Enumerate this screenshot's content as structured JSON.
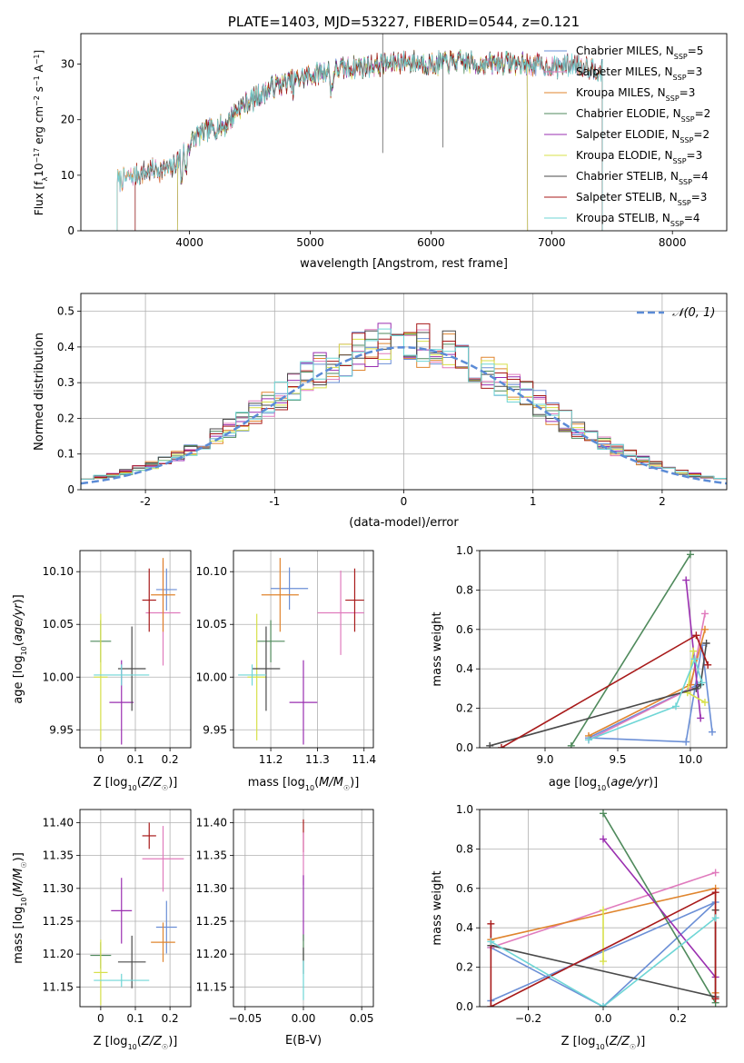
{
  "chart_data": [
    {
      "id": "spectrum",
      "type": "line",
      "title": "PLATE=1403, MJD=53227, FIBERID=0544, z=0.121",
      "xlabel": "wavelength [Angstrom, rest frame]",
      "ylabel": "Flux [f_λ 10^-17 erg cm^-2 s^-1 A^-1]",
      "xlim": [
        3100,
        8450
      ],
      "ylim": [
        0,
        35.5
      ],
      "xticks": [
        4000,
        5000,
        6000,
        7000,
        8000
      ],
      "yticks": [
        0,
        10,
        20,
        30
      ],
      "grid": false,
      "legend_position": "top-right",
      "spectrum_profile": {
        "x": [
          3400,
          3550,
          3700,
          3850,
          3950,
          4050,
          4150,
          4300,
          4400,
          4550,
          4700,
          4860,
          5000,
          5200,
          5400,
          5600,
          5800,
          6000,
          6200,
          6400,
          6600,
          6800,
          7000,
          7200,
          7400
        ],
        "y": [
          9,
          10,
          11,
          11,
          14,
          17,
          18,
          19,
          22,
          24,
          26,
          27,
          28,
          29,
          29.5,
          30,
          30.5,
          30,
          30.5,
          30,
          30.3,
          30,
          29.5,
          30,
          29
        ]
      },
      "series": [
        {
          "name": "Chabrier MILES, N_SSP=5",
          "color": "#6b8fd6",
          "x_start": 3400,
          "x_end": 7420
        },
        {
          "name": "Salpeter MILES, N_SSP=3",
          "color": "#e07bbd",
          "x_start": 3400,
          "x_end": 7420
        },
        {
          "name": "Kroupa MILES, N_SSP=3",
          "color": "#e0852e",
          "x_start": 3400,
          "x_end": 7420
        },
        {
          "name": "Chabrier ELODIE, N_SSP=2",
          "color": "#4f8a5c",
          "x_start": 3900,
          "x_end": 6800
        },
        {
          "name": "Salpeter ELODIE, N_SSP=2",
          "color": "#9a2fb0",
          "x_start": 3900,
          "x_end": 6800
        },
        {
          "name": "Kroupa ELODIE, N_SSP=3",
          "color": "#d7e04a",
          "x_start": 3900,
          "x_end": 6800
        },
        {
          "name": "Chabrier STELIB, N_SSP=4",
          "color": "#4a4a4a",
          "x_start": 3550,
          "x_end": 7420
        },
        {
          "name": "Salpeter STELIB, N_SSP=3",
          "color": "#a81a1a",
          "x_start": 3550,
          "x_end": 7420
        },
        {
          "name": "Kroupa STELIB, N_SSP=4",
          "color": "#6fd6d6",
          "x_start": 3400,
          "x_end": 7420
        }
      ]
    },
    {
      "id": "residuals",
      "type": "step",
      "xlabel": "(data-model)/error",
      "ylabel": "Normed distribution",
      "xlim": [
        -2.5,
        2.5
      ],
      "ylim": [
        0,
        0.55
      ],
      "xticks": [
        -2,
        -1,
        0,
        1,
        2
      ],
      "yticks": [
        0.0,
        0.1,
        0.2,
        0.3,
        0.4,
        0.5
      ],
      "grid": true,
      "legend": "𝒩(0, 1)",
      "legend_position": "top-right",
      "gaussian_color": "#5b8bd6",
      "bin_width": 0.1
    },
    {
      "id": "age-vs-Z",
      "type": "errorbar",
      "xlabel": "Z [log₁₀(Z/Z☉)]",
      "ylabel": "age  [log₁₀(age/yr)]",
      "xlim": [
        -0.06,
        0.26
      ],
      "ylim": [
        9.933,
        10.12
      ],
      "xticks": [
        0.0,
        0.1,
        0.2
      ],
      "yticks": [
        9.95,
        10.0,
        10.05,
        10.1
      ],
      "points": [
        {
          "color": "#6b8fd6",
          "x": 0.19,
          "y": 10.083,
          "xerr": 0.03,
          "yerr": 0.02
        },
        {
          "color": "#e07bbd",
          "x": 0.18,
          "y": 10.061,
          "xerr": 0.05,
          "yerr": 0.05
        },
        {
          "color": "#e0852e",
          "x": 0.18,
          "y": 10.078,
          "xerr": 0.035,
          "yerr": 0.035
        },
        {
          "color": "#4f8a5c",
          "x": 0.0,
          "y": 10.034,
          "xerr": 0.03,
          "yerr": 0.02
        },
        {
          "color": "#9a2fb0",
          "x": 0.06,
          "y": 9.976,
          "xerr": 0.035,
          "yerr": 0.04
        },
        {
          "color": "#d7e04a",
          "x": 0.0,
          "y": 10.0,
          "xerr": 0.02,
          "yerr": 0.06
        },
        {
          "color": "#4a4a4a",
          "x": 0.09,
          "y": 10.008,
          "xerr": 0.04,
          "yerr": 0.04
        },
        {
          "color": "#a81a1a",
          "x": 0.14,
          "y": 10.073,
          "xerr": 0.02,
          "yerr": 0.03
        },
        {
          "color": "#6fd6d6",
          "x": 0.06,
          "y": 10.002,
          "xerr": 0.08,
          "yerr": 0.01
        }
      ]
    },
    {
      "id": "age-vs-mass",
      "type": "errorbar",
      "xlabel": "mass [log₁₀(M/M☉)]",
      "ylabel": "",
      "xlim": [
        11.12,
        11.42
      ],
      "ylim": [
        9.933,
        10.12
      ],
      "xticks": [
        11.2,
        11.3,
        11.4
      ],
      "yticks": [
        9.95,
        10.0,
        10.05,
        10.1
      ],
      "points": [
        {
          "color": "#6b8fd6",
          "x": 11.24,
          "y": 10.084,
          "xerr": 0.04,
          "yerr": 0.02
        },
        {
          "color": "#e07bbd",
          "x": 11.35,
          "y": 10.061,
          "xerr": 0.05,
          "yerr": 0.04
        },
        {
          "color": "#e0852e",
          "x": 11.22,
          "y": 10.078,
          "xerr": 0.04,
          "yerr": 0.035
        },
        {
          "color": "#4f8a5c",
          "x": 11.2,
          "y": 10.034,
          "xerr": 0.03,
          "yerr": 0.02
        },
        {
          "color": "#9a2fb0",
          "x": 11.27,
          "y": 9.976,
          "xerr": 0.03,
          "yerr": 0.04
        },
        {
          "color": "#d7e04a",
          "x": 11.17,
          "y": 10.0,
          "xerr": 0.02,
          "yerr": 0.06
        },
        {
          "color": "#4a4a4a",
          "x": 11.19,
          "y": 10.008,
          "xerr": 0.03,
          "yerr": 0.04
        },
        {
          "color": "#a81a1a",
          "x": 11.38,
          "y": 10.073,
          "xerr": 0.02,
          "yerr": 0.03
        },
        {
          "color": "#6fd6d6",
          "x": 11.16,
          "y": 10.002,
          "xerr": 0.03,
          "yerr": 0.01
        }
      ]
    },
    {
      "id": "weight-vs-age",
      "type": "line",
      "xlabel": "age  [log₁₀(age/yr)]",
      "ylabel": "mass weight",
      "xlim": [
        8.55,
        10.25
      ],
      "ylim": [
        0,
        1
      ],
      "xticks": [
        9.0,
        9.5,
        10.0
      ],
      "xtick_labels": [
        "9.0",
        "9.5",
        "10.0"
      ],
      "yticks": [
        0.0,
        0.2,
        0.4,
        0.6,
        0.8,
        1.0
      ],
      "grid": true,
      "series": [
        {
          "color": "#6b8fd6",
          "x": [
            10.15,
            10.08,
            9.97,
            9.3,
            10.05
          ],
          "y": [
            0.08,
            0.52,
            0.03,
            0.05,
            0.32
          ]
        },
        {
          "color": "#e07bbd",
          "x": [
            9.3,
            10.0,
            10.1
          ],
          "y": [
            0.04,
            0.3,
            0.68
          ]
        },
        {
          "color": "#e0852e",
          "x": [
            9.3,
            10.0,
            10.1
          ],
          "y": [
            0.06,
            0.32,
            0.6
          ]
        },
        {
          "color": "#4f8a5c",
          "x": [
            9.18,
            10.0
          ],
          "y": [
            0.01,
            0.98
          ]
        },
        {
          "color": "#9a2fb0",
          "x": [
            9.97,
            10.07
          ],
          "y": [
            0.85,
            0.15
          ]
        },
        {
          "color": "#d7e04a",
          "x": [
            10.02,
            9.98,
            10.1
          ],
          "y": [
            0.49,
            0.28,
            0.23
          ]
        },
        {
          "color": "#4a4a4a",
          "x": [
            8.62,
            10.04,
            10.07,
            10.11
          ],
          "y": [
            0.01,
            0.3,
            0.32,
            0.53
          ]
        },
        {
          "color": "#a81a1a",
          "x": [
            8.7,
            10.04,
            10.12
          ],
          "y": [
            0.0,
            0.57,
            0.42
          ]
        },
        {
          "color": "#6fd6d6",
          "x": [
            9.3,
            9.9,
            10.03,
            10.08
          ],
          "y": [
            0.04,
            0.21,
            0.45,
            0.33
          ]
        }
      ]
    },
    {
      "id": "mass-vs-Z",
      "type": "errorbar",
      "xlabel": "Z [log₁₀(Z/Z☉)]",
      "ylabel": "mass [log₁₀(M/M☉)]",
      "xlim": [
        -0.06,
        0.26
      ],
      "ylim": [
        11.12,
        11.42
      ],
      "xticks": [
        0.0,
        0.1,
        0.2
      ],
      "yticks": [
        11.15,
        11.2,
        11.25,
        11.3,
        11.35,
        11.4
      ],
      "points": [
        {
          "color": "#6b8fd6",
          "x": 0.19,
          "y": 11.241,
          "xerr": 0.03,
          "yerr": 0.04
        },
        {
          "color": "#e07bbd",
          "x": 0.18,
          "y": 11.345,
          "xerr": 0.06,
          "yerr": 0.05
        },
        {
          "color": "#e0852e",
          "x": 0.18,
          "y": 11.218,
          "xerr": 0.035,
          "yerr": 0.03
        },
        {
          "color": "#4f8a5c",
          "x": 0.0,
          "y": 11.198,
          "xerr": 0.03,
          "yerr": 0.02
        },
        {
          "color": "#9a2fb0",
          "x": 0.06,
          "y": 11.266,
          "xerr": 0.03,
          "yerr": 0.05
        },
        {
          "color": "#d7e04a",
          "x": 0.0,
          "y": 11.172,
          "xerr": 0.02,
          "yerr": 0.05
        },
        {
          "color": "#4a4a4a",
          "x": 0.09,
          "y": 11.188,
          "xerr": 0.04,
          "yerr": 0.04
        },
        {
          "color": "#a81a1a",
          "x": 0.14,
          "y": 11.38,
          "xerr": 0.02,
          "yerr": 0.02
        },
        {
          "color": "#6fd6d6",
          "x": 0.06,
          "y": 11.16,
          "xerr": 0.08,
          "yerr": 0.01
        }
      ]
    },
    {
      "id": "mass-vs-ebv",
      "type": "errorbar",
      "xlabel": "E(B-V)",
      "ylabel": "",
      "xlim": [
        -0.06,
        0.06
      ],
      "ylim": [
        11.12,
        11.42
      ],
      "xticks": [
        -0.05,
        0.0,
        0.05
      ],
      "xtick_labels": [
        "−0.05",
        "0.00",
        "0.05"
      ],
      "yticks": [
        11.15,
        11.2,
        11.25,
        11.3,
        11.35,
        11.4
      ],
      "points": [
        {
          "color": "#a81a1a",
          "x": 0.0,
          "y": 11.38,
          "xerr": 0.0,
          "yerr": 0.025
        },
        {
          "color": "#e07bbd",
          "x": 0.0,
          "y": 11.345,
          "xerr": 0.0,
          "yerr": 0.04
        },
        {
          "color": "#9a2fb0",
          "x": 0.0,
          "y": 11.27,
          "xerr": 0.0,
          "yerr": 0.05
        },
        {
          "color": "#4f8a5c",
          "x": 0.0,
          "y": 11.21,
          "xerr": 0.0,
          "yerr": 0.02
        },
        {
          "color": "#4a4a4a",
          "x": 0.0,
          "y": 11.19,
          "xerr": 0.0,
          "yerr": 0.02
        },
        {
          "color": "#6fd6d6",
          "x": 0.0,
          "y": 11.16,
          "xerr": 0.0,
          "yerr": 0.03
        }
      ]
    },
    {
      "id": "weight-vs-Z",
      "type": "line",
      "xlabel": "Z [log₁₀(Z/Z☉)]",
      "ylabel": "mass weight",
      "xlim": [
        -0.33,
        0.33
      ],
      "ylim": [
        0,
        1
      ],
      "xticks": [
        -0.2,
        0.0,
        0.2
      ],
      "xtick_labels": [
        "−0.2",
        "0.0",
        "0.2"
      ],
      "yticks": [
        0.0,
        0.2,
        0.4,
        0.6,
        0.8,
        1.0
      ],
      "grid": true,
      "series": [
        {
          "color": "#6b8fd6",
          "x": [
            -0.3,
            0.3,
            0.0,
            -0.3
          ],
          "y": [
            0.03,
            0.53,
            0.0,
            0.3
          ]
        },
        {
          "color": "#e07bbd",
          "x": [
            -0.3,
            0.3
          ],
          "y": [
            0.3,
            0.68
          ]
        },
        {
          "color": "#e0852e",
          "x": [
            -0.3,
            0.3,
            0.3
          ],
          "y": [
            0.34,
            0.6,
            0.07
          ]
        },
        {
          "color": "#4f8a5c",
          "x": [
            0.0,
            0.3
          ],
          "y": [
            0.98,
            0.02
          ]
        },
        {
          "color": "#9a2fb0",
          "x": [
            0.0,
            0.3
          ],
          "y": [
            0.85,
            0.15
          ]
        },
        {
          "color": "#d7e04a",
          "x": [
            0.0,
            0.0
          ],
          "y": [
            0.49,
            0.23
          ]
        },
        {
          "color": "#4a4a4a",
          "x": [
            -0.3,
            0.3,
            0.3
          ],
          "y": [
            0.31,
            0.05,
            0.49
          ]
        },
        {
          "color": "#a81a1a",
          "x": [
            -0.3,
            -0.3,
            0.3,
            0.3
          ],
          "y": [
            0.42,
            0.0,
            0.58,
            0.04
          ]
        },
        {
          "color": "#6fd6d6",
          "x": [
            -0.3,
            0.0,
            0.3
          ],
          "y": [
            0.33,
            0.0,
            0.45
          ]
        }
      ]
    }
  ]
}
